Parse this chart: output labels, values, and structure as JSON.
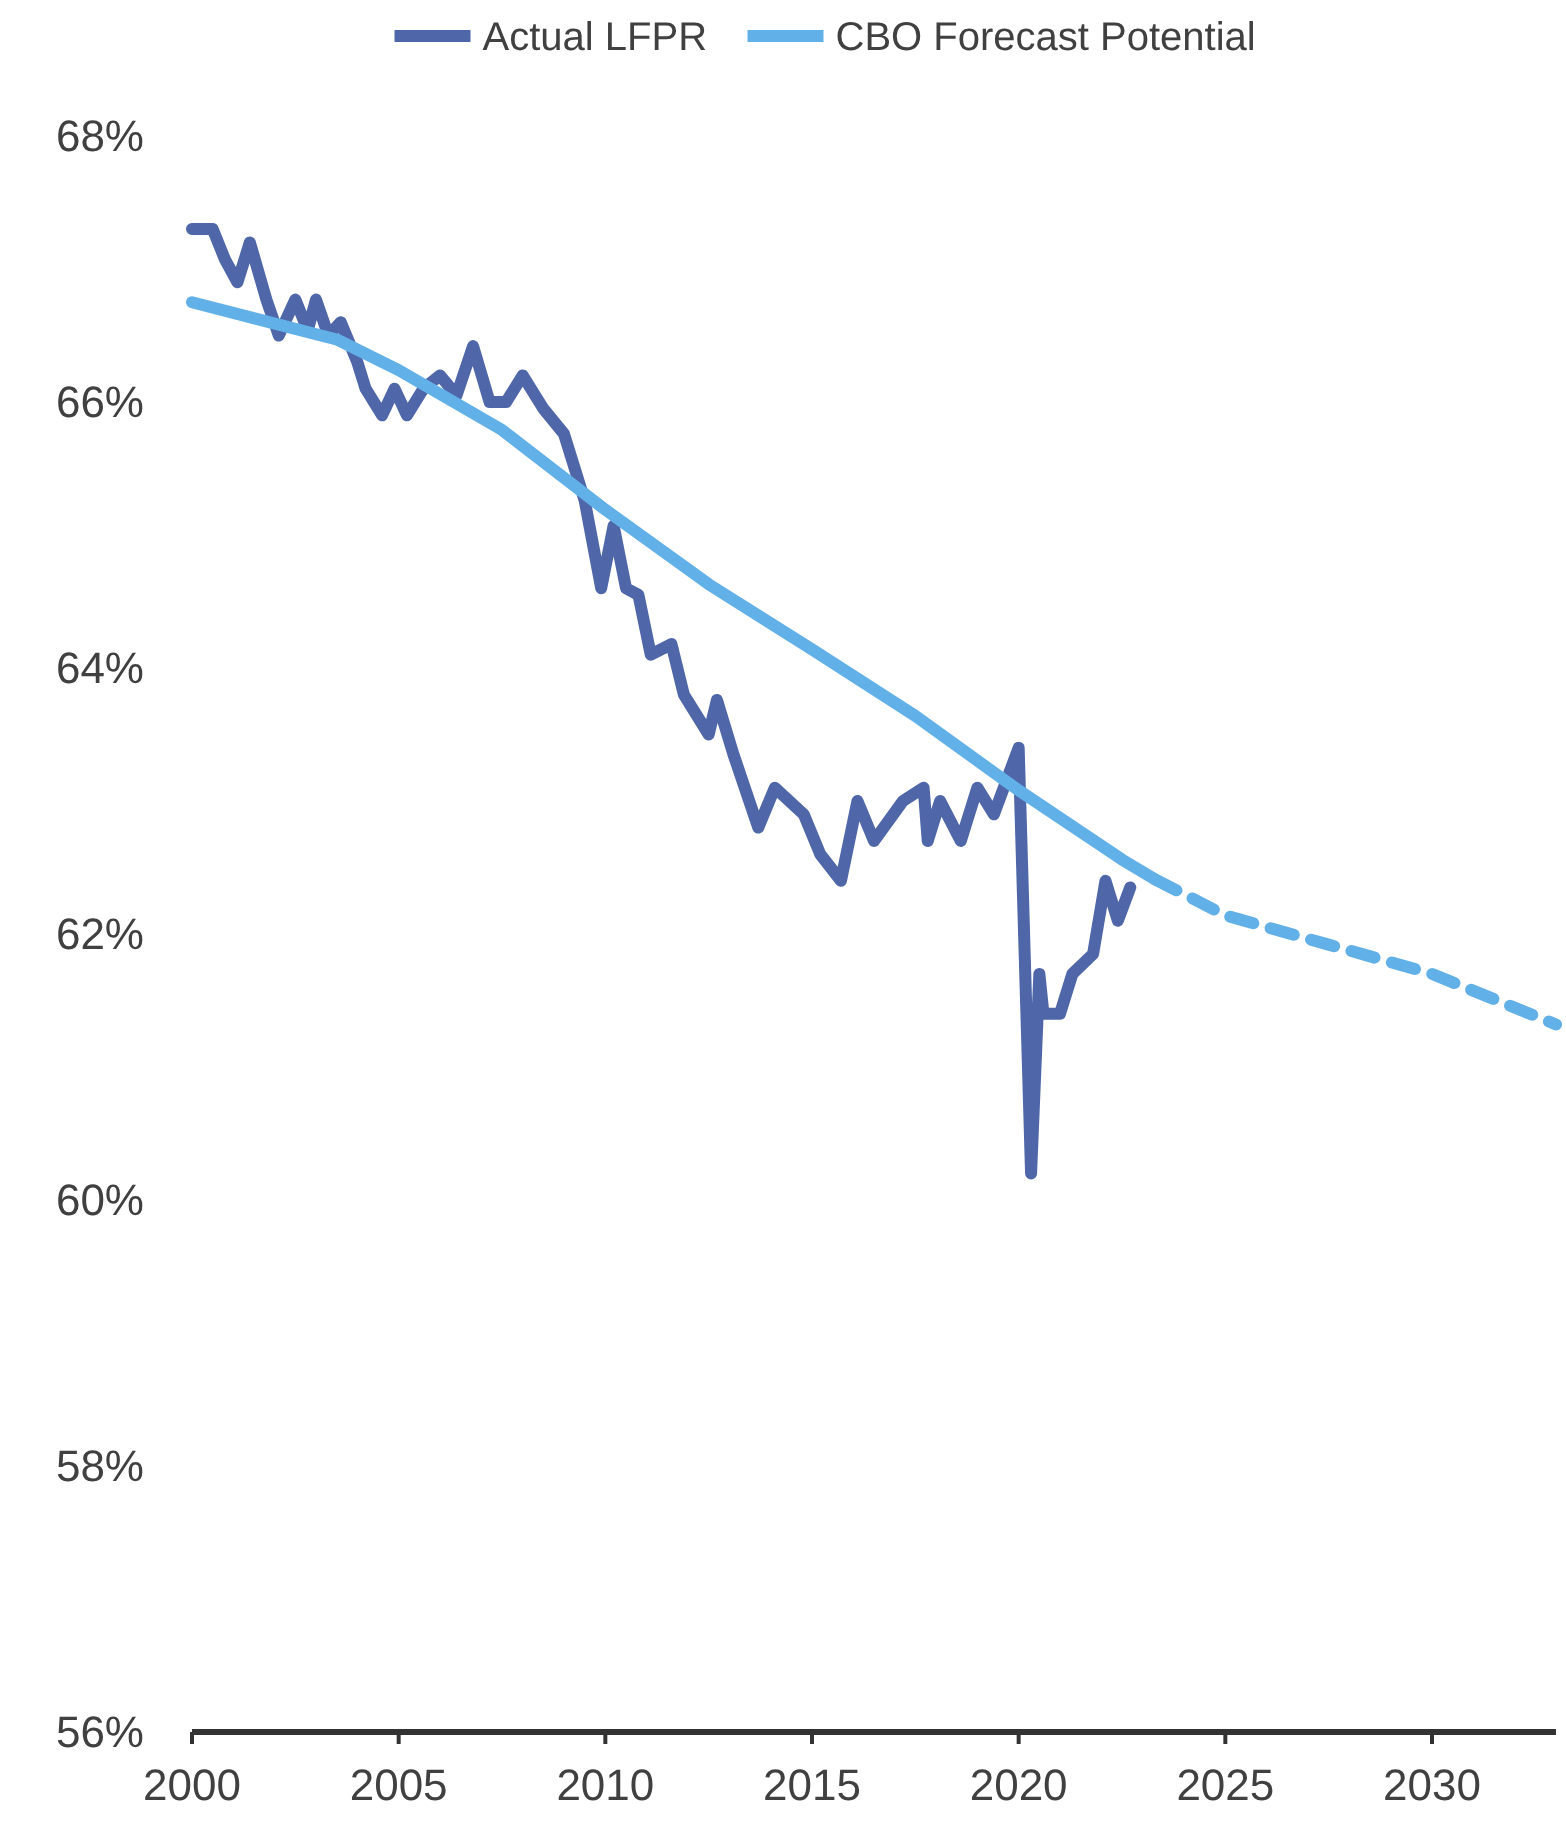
{
  "chart_data": {
    "type": "line",
    "xlim": [
      2000,
      2033
    ],
    "xticks": [
      2000,
      2005,
      2010,
      2015,
      2020,
      2025,
      2030
    ],
    "ylim": [
      56,
      68
    ],
    "yticks": [
      {
        "value": 56,
        "label": "56%"
      },
      {
        "value": 58,
        "label": "58%"
      },
      {
        "value": 60,
        "label": "60%"
      },
      {
        "value": 62,
        "label": "62%"
      },
      {
        "value": 64,
        "label": "64%"
      },
      {
        "value": 66,
        "label": "66%"
      },
      {
        "value": 68,
        "label": "68%"
      }
    ],
    "grid": false,
    "legend": "top",
    "marker": "none",
    "series": [
      {
        "name": "Actual LFPR",
        "color": "#4f67a8",
        "line_style": "solid",
        "x": [
          2000,
          2000.5,
          2000.8,
          2001.1,
          2001.4,
          2001.8,
          2002.1,
          2002.5,
          2002.8,
          2003.0,
          2003.3,
          2003.6,
          2004.0,
          2004.2,
          2004.6,
          2004.9,
          2005.2,
          2005.6,
          2006.0,
          2006.4,
          2006.8,
          2007.2,
          2007.6,
          2008.0,
          2008.5,
          2009.0,
          2009.5,
          2009.9,
          2010.2,
          2010.5,
          2010.8,
          2011.1,
          2011.6,
          2011.9,
          2012.5,
          2012.7,
          2013.1,
          2013.7,
          2014.1,
          2014.8,
          2015.2,
          2015.7,
          2016.1,
          2016.5,
          2017.2,
          2017.7,
          2017.8,
          2018.1,
          2018.6,
          2019.0,
          2019.4,
          2020.0,
          2020.3,
          2020.5,
          2020.6,
          2021.0,
          2021.3,
          2021.8,
          2022.1,
          2022.4,
          2022.7
        ],
        "values": [
          67.3,
          67.3,
          67.07,
          66.9,
          67.2,
          66.77,
          66.5,
          66.77,
          66.54,
          66.77,
          66.5,
          66.6,
          66.3,
          66.1,
          65.9,
          66.1,
          65.9,
          66.1,
          66.2,
          66.05,
          66.42,
          66.0,
          66.0,
          66.2,
          65.95,
          65.76,
          65.26,
          64.6,
          65.07,
          64.6,
          64.55,
          64.1,
          64.18,
          63.8,
          63.5,
          63.76,
          63.35,
          62.8,
          63.1,
          62.9,
          62.6,
          62.4,
          63.0,
          62.7,
          63.0,
          63.1,
          62.7,
          63.0,
          62.7,
          63.1,
          62.9,
          63.4,
          60.2,
          61.7,
          61.4,
          61.4,
          61.7,
          61.85,
          62.4,
          62.1,
          62.35
        ]
      },
      {
        "name": "CBO Forecast Potential",
        "color": "#62b0e8",
        "line_style": "solid",
        "x": [
          2000,
          2003.5,
          2005,
          2007.5,
          2010,
          2012.5,
          2015,
          2017.5,
          2020,
          2022.5,
          2023.3
        ],
        "values": [
          66.75,
          66.47,
          66.24,
          65.79,
          65.19,
          64.63,
          64.14,
          63.64,
          63.08,
          62.56,
          62.41
        ]
      },
      {
        "color": "#62b0e8",
        "line_style": "dashed",
        "x": [
          2023.3,
          2024,
          2025,
          2027.5,
          2030,
          2033
        ],
        "values": [
          62.41,
          62.3,
          62.14,
          61.92,
          61.7,
          61.32
        ]
      }
    ]
  }
}
